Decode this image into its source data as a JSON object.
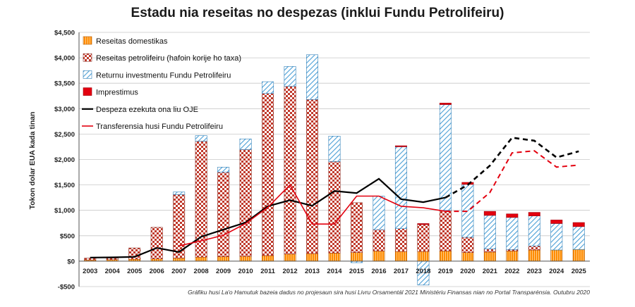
{
  "colors": {
    "domestic": "#ff8c00",
    "domestic_line": "#ffd9a8",
    "petroleum": "#c0392b",
    "petroleum_bg": "#ffffff",
    "fund_return": "#4a9fd6",
    "loans": "#e3000f",
    "spending": "#000000",
    "transfer": "#e3000f",
    "grid": "#c8c8c8"
  },
  "chart_data": {
    "type": "bar",
    "title": "Estadu nia reseitas no despezas (inklui Fundu Petrolifeiru)",
    "ylabel": "Tokon dolar EUA kada tinan",
    "caption": "Gráfiku husi La'o Hamutuk bazeia dadus no projesaun sira husi Livru Orsamentál 2021 Ministériu Finansas nian no Portal Transparénsia. Outubru 2020",
    "ylim": [
      -500,
      4500
    ],
    "yticks": [
      -500,
      0,
      500,
      1000,
      1500,
      2000,
      2500,
      3000,
      3500,
      4000,
      4500
    ],
    "ytick_labels": [
      "-$500",
      "$0",
      "$500",
      "$1,000",
      "$1,500",
      "$2,000",
      "$2,500",
      "$3,000",
      "$3,500",
      "$4,000",
      "$4,500"
    ],
    "categories": [
      "2003",
      "2004",
      "2005",
      "2006",
      "2007",
      "2008",
      "2009",
      "2010",
      "2011",
      "2012",
      "2013",
      "2014",
      "2015",
      "2016",
      "2017",
      "2018",
      "2019",
      "2020",
      "2021",
      "2022",
      "2023",
      "2024",
      "2025"
    ],
    "legend_position": "top-left",
    "series": [
      {
        "name": "Reseitas domestikas",
        "kind": "bar",
        "values": [
          25,
          30,
          40,
          45,
          60,
          80,
          90,
          95,
          110,
          140,
          150,
          160,
          170,
          200,
          190,
          190,
          200,
          170,
          180,
          200,
          220,
          220,
          230
        ]
      },
      {
        "name": "Reseitas petrolifeiru (hafoin korije ho taxa)",
        "kind": "bar",
        "values": [
          35,
          30,
          220,
          620,
          1250,
          2280,
          1660,
          2100,
          3190,
          3300,
          3030,
          1800,
          980,
          420,
          450,
          530,
          800,
          300,
          60,
          30,
          80,
          0,
          0
        ]
      },
      {
        "name": "Returnu investmentu Fundu Petrolifeiru",
        "kind": "bar",
        "values": [
          0,
          0,
          0,
          0,
          50,
          110,
          100,
          210,
          230,
          390,
          880,
          500,
          -30,
          660,
          1610,
          -470,
          2080,
          1040,
          660,
          630,
          590,
          520,
          450
        ]
      },
      {
        "name": "Imprestimus",
        "kind": "bar",
        "values": [
          0,
          0,
          0,
          0,
          0,
          0,
          0,
          0,
          0,
          0,
          0,
          0,
          0,
          0,
          20,
          20,
          30,
          40,
          80,
          70,
          70,
          70,
          80
        ]
      },
      {
        "name": "Despeza ezekuta ona liu OJE",
        "kind": "line",
        "projection_from": "2019",
        "values": [
          70,
          75,
          85,
          260,
          180,
          480,
          620,
          760,
          1080,
          1200,
          1090,
          1380,
          1340,
          1620,
          1220,
          1160,
          1250,
          1500,
          1880,
          2430,
          2370,
          2040,
          2160
        ]
      },
      {
        "name": "Transferensia husi Fundu Petrolifeiru",
        "kind": "line",
        "start": "2007",
        "projection_from": "2019",
        "values": [
          null,
          null,
          null,
          null,
          300,
          400,
          510,
          740,
          1060,
          1500,
          730,
          730,
          1280,
          1280,
          1080,
          1050,
          980,
          980,
          1350,
          2130,
          2170,
          1850,
          1890
        ]
      }
    ]
  }
}
